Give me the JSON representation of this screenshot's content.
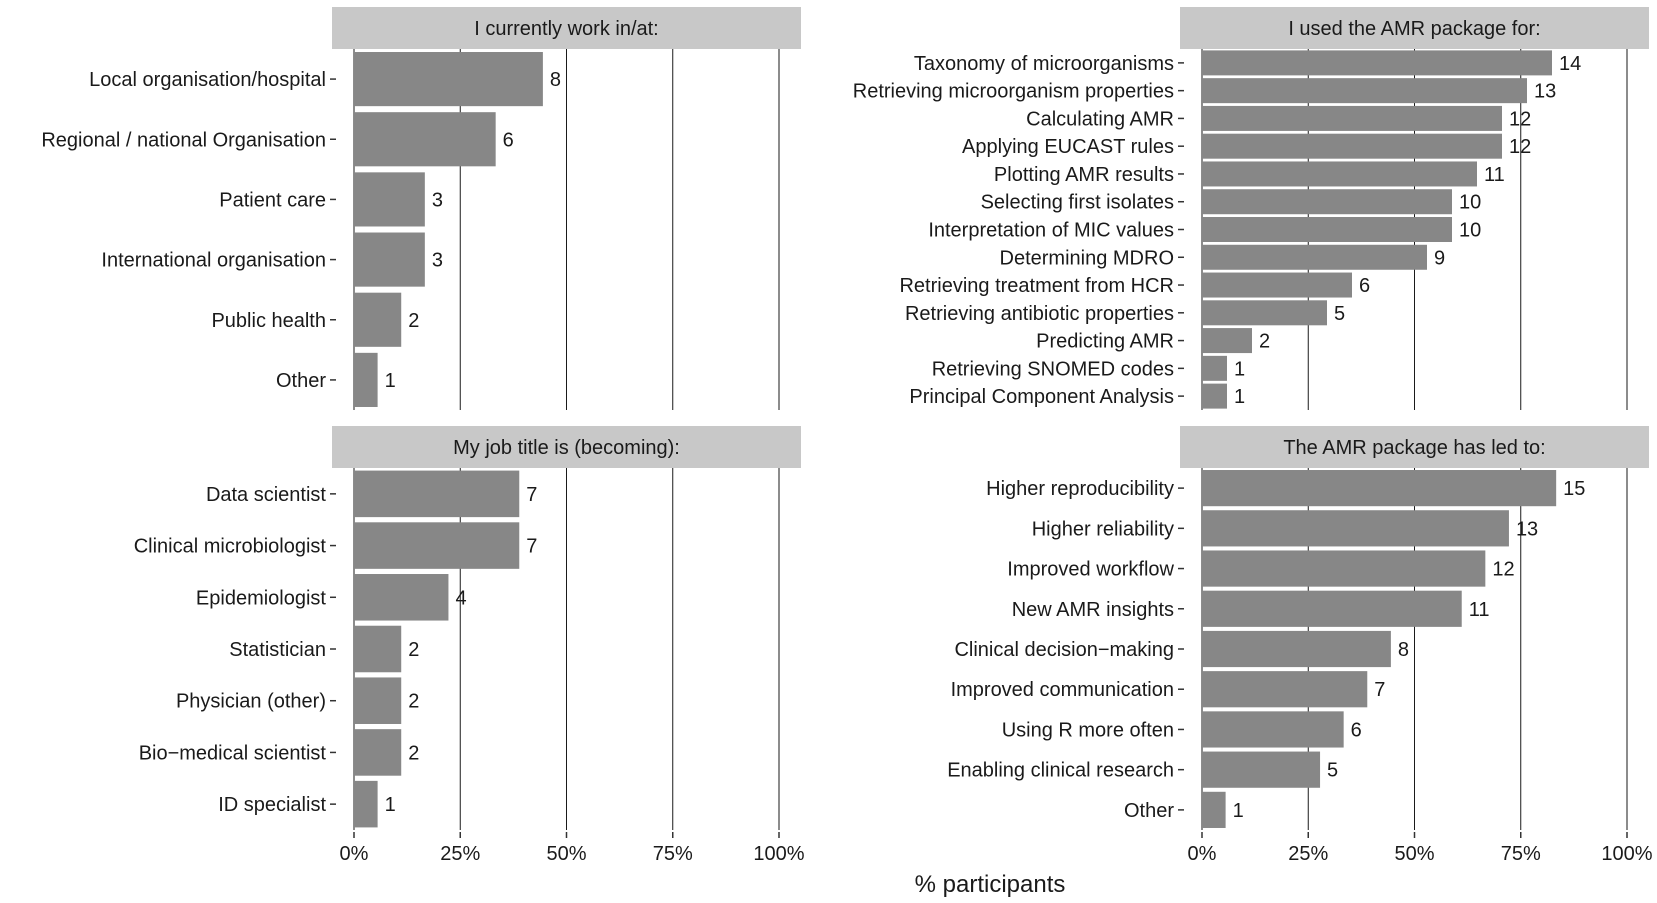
{
  "chart_data": {
    "type": "bar",
    "orientation": "horizontal",
    "xlabel": "% participants",
    "xlim": [
      0,
      100
    ],
    "xticks": [
      "0%",
      "25%",
      "50%",
      "75%",
      "100%"
    ],
    "colors": {
      "bar": "#878787",
      "strip": "#c8c8c8",
      "grid": "#1a1a1a"
    },
    "panels": [
      {
        "title": "I currently work in/at:",
        "total": 18,
        "categories": [
          "Local organisation/hospital",
          "Regional / national Organisation",
          "Patient care",
          "International organisation",
          "Public health",
          "Other"
        ],
        "values": [
          8,
          6,
          3,
          3,
          2,
          1
        ]
      },
      {
        "title": "I used the AMR package for:",
        "total": 17,
        "categories": [
          "Taxonomy of microorganisms",
          "Retrieving microorganism properties",
          "Calculating AMR",
          "Applying EUCAST rules",
          "Plotting AMR results",
          "Selecting first isolates",
          "Interpretation of MIC values",
          "Determining MDRO",
          "Retrieving treatment from HCR",
          "Retrieving antibiotic properties",
          "Predicting AMR",
          "Retrieving SNOMED codes",
          "Principal Component Analysis"
        ],
        "values": [
          14,
          13,
          12,
          12,
          11,
          10,
          10,
          9,
          6,
          5,
          2,
          1,
          1
        ]
      },
      {
        "title": "My job title is (becoming):",
        "total": 18,
        "categories": [
          "Data scientist",
          "Clinical microbiologist",
          "Epidemiologist",
          "Statistician",
          "Physician (other)",
          "Bio−medical scientist",
          "ID specialist"
        ],
        "values": [
          7,
          7,
          4,
          2,
          2,
          2,
          1
        ]
      },
      {
        "title": "The AMR package has led to:",
        "total": 18,
        "categories": [
          "Higher reproducibility",
          "Higher reliability",
          "Improved workflow",
          "New AMR insights",
          "Clinical decision−making",
          "Improved communication",
          "Using R more often",
          "Enabling clinical research",
          "Other"
        ],
        "values": [
          15,
          13,
          12,
          11,
          8,
          7,
          6,
          5,
          1
        ]
      }
    ]
  }
}
